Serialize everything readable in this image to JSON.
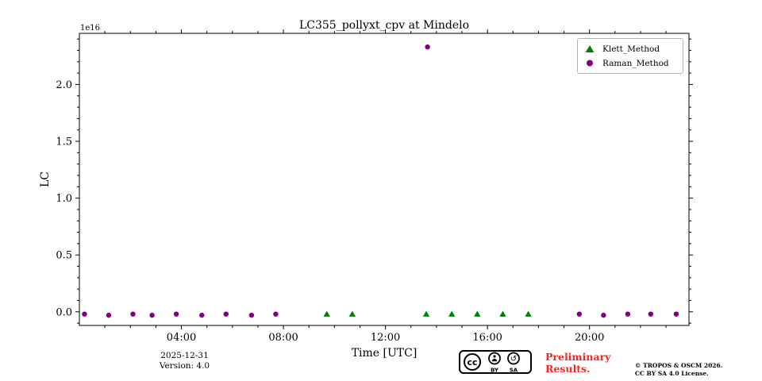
{
  "chart_data": {
    "type": "scatter",
    "title": "LC355_pollyxt_cpv at Mindelo",
    "xlabel": "Time [UTC]",
    "ylabel": "LC",
    "y_offset_text": "1e16",
    "y_scale": 1e+16,
    "xlim": [
      0,
      23.9
    ],
    "ylim": [
      -0.12,
      2.45
    ],
    "grid": false,
    "legend_position": "upper right",
    "x_ticks": [
      {
        "value": 4,
        "label": "04:00"
      },
      {
        "value": 8,
        "label": "08:00"
      },
      {
        "value": 12,
        "label": "12:00"
      },
      {
        "value": 16,
        "label": "16:00"
      },
      {
        "value": 20,
        "label": "20:00"
      }
    ],
    "x_minor_step": 1,
    "y_ticks": [
      {
        "value": 0.0,
        "label": "0.0"
      },
      {
        "value": 0.5,
        "label": "0.5"
      },
      {
        "value": 1.0,
        "label": "1.0"
      },
      {
        "value": 1.5,
        "label": "1.5"
      },
      {
        "value": 2.0,
        "label": "2.0"
      }
    ],
    "y_minor_step": 0.1,
    "series": [
      {
        "name": "Klett_Method",
        "marker": "triangle",
        "color": "#008000",
        "points": [
          [
            9.7,
            -0.02
          ],
          [
            10.7,
            -0.02
          ],
          [
            13.6,
            -0.02
          ],
          [
            14.6,
            -0.02
          ],
          [
            15.6,
            -0.02
          ],
          [
            16.6,
            -0.02
          ],
          [
            17.6,
            -0.02
          ]
        ]
      },
      {
        "name": "Raman_Method",
        "marker": "circle",
        "color": "#800080",
        "points": [
          [
            0.2,
            -0.02
          ],
          [
            1.15,
            -0.03
          ],
          [
            2.1,
            -0.02
          ],
          [
            2.85,
            -0.03
          ],
          [
            3.8,
            -0.02
          ],
          [
            4.8,
            -0.03
          ],
          [
            5.75,
            -0.02
          ],
          [
            6.75,
            -0.03
          ],
          [
            7.7,
            -0.02
          ],
          [
            13.65,
            2.33
          ],
          [
            19.6,
            -0.02
          ],
          [
            20.55,
            -0.03
          ],
          [
            21.5,
            -0.02
          ],
          [
            22.4,
            -0.02
          ],
          [
            23.4,
            -0.02
          ]
        ]
      }
    ]
  },
  "footer": {
    "date": "2025-12-31",
    "version": "Version: 4.0",
    "preliminary_line1": "Preliminary",
    "preliminary_line2": "Results.",
    "preliminary_color": "#ff2020",
    "copyright_line1": "© TROPOS & OSCM 2026.",
    "copyright_line2": "CC BY SA 4.0 License.",
    "badge": {
      "cc": "cc",
      "by": "BY",
      "sa": "SA"
    }
  },
  "icons": {
    "sa_arrow": "↺"
  }
}
